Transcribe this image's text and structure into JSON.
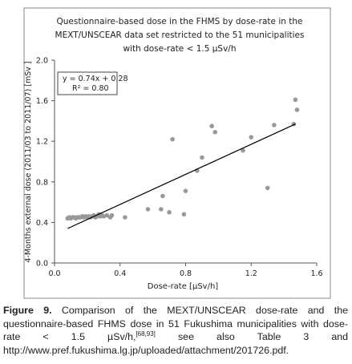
{
  "chart_data": {
    "type": "scatter",
    "title": [
      "Questionnaire-based dose in the FHMS by dose-rate in the",
      "MEXT/UNSCEAR data set restricted to the 51 municipalities",
      "with dose-rate < 1.5 µSv/h"
    ],
    "x_label": "Dose-rate [µSv/h]",
    "y_label": "4-Months external dose (2011/03 to 2011/07) [mSv ]",
    "xlim": [
      0,
      1.6
    ],
    "ylim": [
      0,
      2.0
    ],
    "xticks": [
      {
        "value": 0,
        "label": "0.0"
      },
      0.4,
      0.8,
      1.2,
      1.6
    ],
    "yticks": [
      {
        "value": 0,
        "label": "0.0"
      },
      0.4,
      0.8,
      1.2,
      1.6,
      {
        "value": 2,
        "label": "2.0"
      }
    ],
    "color": "#999999",
    "x": [
      0.08,
      0.09,
      0.1,
      0.11,
      0.12,
      0.13,
      0.14,
      0.15,
      0.16,
      0.17,
      0.18,
      0.19,
      0.2,
      0.21,
      0.22,
      0.23,
      0.24,
      0.25,
      0.26,
      0.27,
      0.28,
      0.29,
      0.3,
      0.32,
      0.34,
      0.35,
      0.43,
      0.57,
      0.65,
      0.66,
      0.7,
      0.72,
      0.79,
      0.8,
      0.87,
      0.9,
      0.96,
      0.98,
      1.15,
      1.2,
      1.3,
      1.34,
      1.46,
      1.47,
      1.48
    ],
    "y": [
      0.44,
      0.45,
      0.44,
      0.45,
      0.45,
      0.44,
      0.45,
      0.45,
      0.45,
      0.46,
      0.45,
      0.46,
      0.45,
      0.46,
      0.45,
      0.46,
      0.47,
      0.45,
      0.46,
      0.48,
      0.46,
      0.47,
      0.46,
      0.47,
      0.45,
      0.47,
      0.45,
      0.53,
      0.53,
      0.66,
      0.5,
      1.22,
      0.48,
      0.71,
      0.91,
      1.04,
      1.35,
      1.29,
      1.11,
      1.24,
      0.74,
      1.36,
      1.37,
      1.61,
      1.51
    ],
    "trendline": {
      "x": [
        0.08,
        1.47
      ],
      "y": [
        0.34,
        1.37
      ],
      "color": "#000000"
    },
    "annotation": [
      "y = 0.74x + 0.28",
      "R² = 0.80"
    ]
  },
  "caption": {
    "label": "Figure 9.",
    "text": "Comparison of the MEXT/UNSCEAR dose-rate and the questionnaire-based FHMS dose in 51 Fukushima municipalities with dose-rate < 1.5 µSv/h,",
    "reference": "[68,93]",
    "text_after": " see also Table 3 and http://www.pref.fukushima.lg.jp/uploaded/attachment/201726.pdf."
  }
}
